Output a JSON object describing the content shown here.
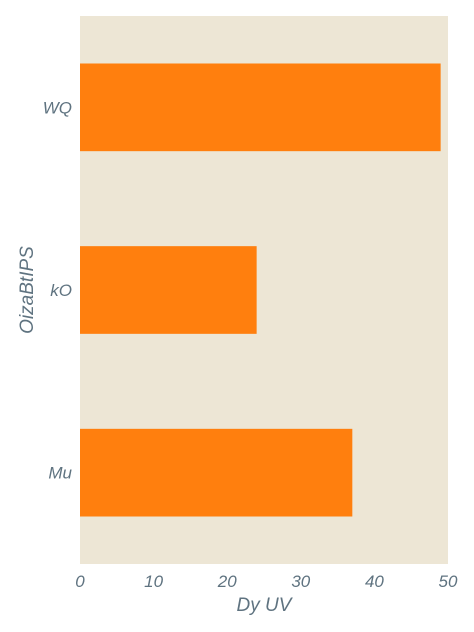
{
  "chart_data": {
    "type": "bar",
    "orientation": "horizontal",
    "categories": [
      "WQ",
      "kO",
      "Mu"
    ],
    "values": [
      49,
      24,
      37
    ],
    "title": "",
    "xlabel": "Dy UV",
    "ylabel": "OizaBtIPS",
    "xlim": [
      0,
      50
    ],
    "xticks": [
      0,
      10,
      20,
      30,
      40,
      50
    ],
    "grid": false,
    "colors": {
      "bar": "#ff7f0e",
      "plot_bg": "#ede6d5",
      "text": "#5f7380"
    }
  }
}
